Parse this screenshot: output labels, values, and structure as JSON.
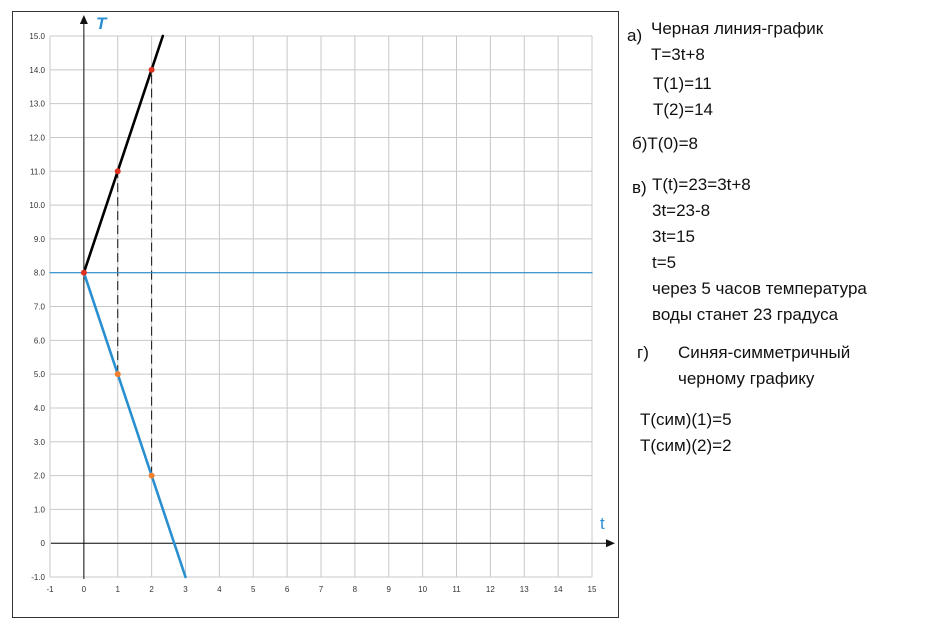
{
  "chart_data": {
    "type": "line",
    "x_axis": {
      "label": "t",
      "range": [
        -1,
        15
      ],
      "ticks": [
        "-1",
        "0",
        "1",
        "2",
        "3",
        "4",
        "5",
        "6",
        "7",
        "8",
        "9",
        "10",
        "11",
        "12",
        "13",
        "14",
        "15"
      ]
    },
    "y_axis": {
      "label": "T",
      "range": [
        -1,
        15
      ],
      "ticks": [
        "-1.0",
        "0",
        "1.0",
        "2.0",
        "3.0",
        "4.0",
        "5.0",
        "6.0",
        "7.0",
        "8.0",
        "9.0",
        "10.0",
        "11.0",
        "12.0",
        "13.0",
        "14.0",
        "15.0"
      ]
    },
    "grid": true,
    "series": [
      {
        "color": "#000000",
        "x": [
          0,
          2.33
        ],
        "y": [
          8,
          15
        ]
      },
      {
        "color": "#2a8fd0",
        "x": [
          0,
          3
        ],
        "y": [
          8,
          -1
        ]
      },
      {
        "color": "#2a8fd0",
        "x": [
          -1,
          15
        ],
        "y": [
          8,
          8
        ]
      }
    ],
    "points": [
      {
        "x": 0,
        "y": 8,
        "color": "#e03020"
      },
      {
        "x": 1,
        "y": 11,
        "color": "#e03020"
      },
      {
        "x": 2,
        "y": 14,
        "color": "#e03020"
      },
      {
        "x": 1,
        "y": 5,
        "color": "#f08030"
      },
      {
        "x": 2,
        "y": 2,
        "color": "#f08030"
      }
    ],
    "dashed_guides": [
      {
        "x": 1,
        "y_from": 5,
        "y_to": 11
      },
      {
        "x": 2,
        "y_from": 2,
        "y_to": 14
      }
    ]
  },
  "notes": {
    "a_marker": "а)",
    "a_lines": [
      "Черная линия-график",
      "T=3t+8",
      "T(1)=11",
      "T(2)=14"
    ],
    "b_marker": "б)",
    "b_text": "T(0)=8",
    "v_marker": "в)",
    "v_lines": [
      "T(t)=23=3t+8",
      "3t=23-8",
      "3t=15",
      "t=5",
      "через 5 часов температура",
      "воды станет 23 градуса"
    ],
    "g_marker": "г)",
    "g_lines": [
      "Синяя-симметричный",
      "черному графику"
    ],
    "sym_lines": [
      "T(сим)(1)=5",
      "T(сим)(2)=2"
    ]
  }
}
